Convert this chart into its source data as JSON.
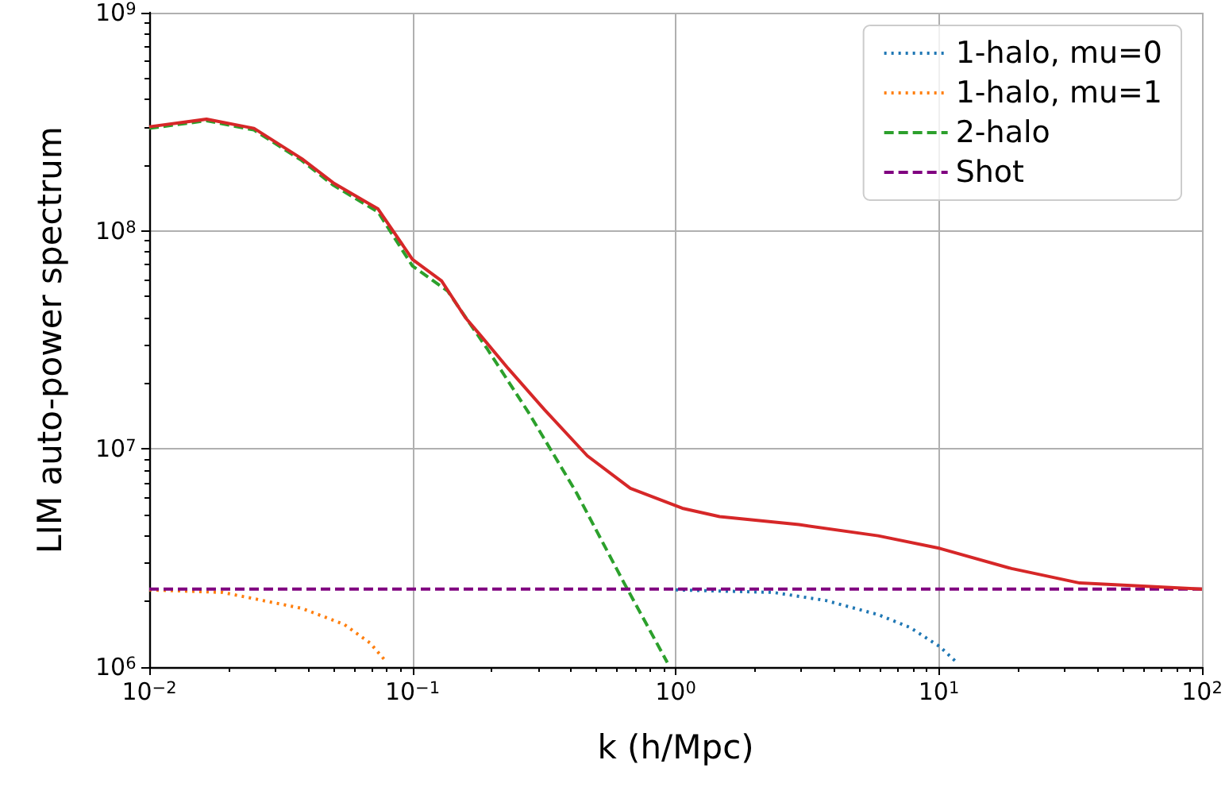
{
  "chart_data": {
    "type": "line",
    "xlabel": "k (h/Mpc)",
    "ylabel": "LIM auto-power spectrum",
    "log": "xy",
    "grid": true,
    "legend": "top right",
    "marker": "none",
    "xlim": [
      0.01,
      100
    ],
    "ylim": [
      1000000,
      1000000000
    ],
    "xticks": [
      {
        "value": 0.01,
        "label": "10$^{−2}$"
      },
      {
        "value": 0.1,
        "label": "10$^{−1}$"
      },
      {
        "value": 1,
        "label": "10$^{0}$"
      },
      {
        "value": 10,
        "label": "10$^{1}$"
      },
      {
        "value": 100,
        "label": "10$^{2}$"
      }
    ],
    "yticks": [
      {
        "value": 1000000,
        "label": "10$^{6}$"
      },
      {
        "value": 10000000,
        "label": "10$^{7}$"
      },
      {
        "value": 100000000,
        "label": "10$^{8}$"
      },
      {
        "value": 1000000000,
        "label": "10$^{9}$"
      }
    ],
    "series": [
      {
        "name": "1-halo, mu=0",
        "color": "#1f77b4",
        "line_style": "dotted",
        "x": [
          1,
          2.35,
          3.72,
          5.88,
          7.77,
          10.1,
          11.7
        ],
        "values": [
          2260000,
          2200000,
          2020000,
          1740000,
          1520000,
          1240000,
          1050000
        ]
      },
      {
        "name": "1-halo, mu=1",
        "color": "#ff7f0e",
        "line_style": "dotted",
        "x": [
          0.01,
          0.019,
          0.038,
          0.055,
          0.069,
          0.08
        ],
        "values": [
          2260000,
          2200000,
          1860000,
          1570000,
          1290000,
          1050000
        ]
      },
      {
        "name": "2-halo",
        "color": "#2ca02c",
        "line_style": "dashed",
        "x": [
          0.01,
          0.0165,
          0.025,
          0.038,
          0.05,
          0.074,
          0.1,
          0.136,
          0.193,
          0.277,
          0.42,
          0.637,
          0.93
        ],
        "values": [
          295000000,
          320000000,
          290000000,
          210000000,
          162000000,
          122000000,
          69000000,
          53000000,
          28600000,
          14600000,
          6300000,
          2430000,
          1050000
        ]
      },
      {
        "name": "Shot",
        "color": "#800080",
        "line_style": "dashed",
        "x": [
          0.01,
          100
        ],
        "values": [
          2280000,
          2280000
        ]
      },
      {
        "color": "#d62728",
        "line_style": "solid",
        "x": [
          0.01,
          0.0165,
          0.025,
          0.038,
          0.05,
          0.074,
          0.1,
          0.129,
          0.159,
          0.182,
          0.231,
          0.318,
          0.462,
          0.673,
          1.06,
          1.47,
          2.94,
          5.88,
          10.1,
          18.9,
          34.3,
          100
        ],
        "values": [
          300000000,
          325000000,
          295000000,
          214000000,
          166000000,
          126000000,
          74000000,
          59000000,
          40000000,
          33000000,
          23400000,
          15100000,
          9300000,
          6600000,
          5350000,
          4900000,
          4500000,
          4000000,
          3500000,
          2830000,
          2430000,
          2280000
        ]
      }
    ]
  }
}
